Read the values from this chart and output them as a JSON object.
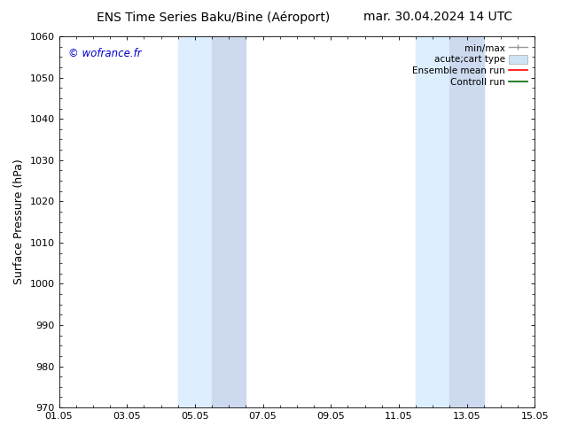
{
  "title_left": "ENS Time Series Baku/Bine (Aéroport)",
  "title_right": "mar. 30.04.2024 14 UTC",
  "ylabel": "Surface Pressure (hPa)",
  "ylim": [
    970,
    1060
  ],
  "yticks": [
    970,
    980,
    990,
    1000,
    1010,
    1020,
    1030,
    1040,
    1050,
    1060
  ],
  "xlim_start": 0,
  "xlim_end": 14,
  "xtick_labels": [
    "01.05",
    "03.05",
    "05.05",
    "07.05",
    "09.05",
    "11.05",
    "13.05",
    "15.05"
  ],
  "xtick_positions": [
    0,
    2,
    4,
    6,
    8,
    10,
    12,
    14
  ],
  "watermark": "© wofrance.fr",
  "watermark_color": "#0000cc",
  "bg_color": "#ffffff",
  "plot_bg_color": "#ffffff",
  "shaded_regions": [
    {
      "xmin": 3.5,
      "xmax": 4.5,
      "color": "#ddeeff"
    },
    {
      "xmin": 4.5,
      "xmax": 5.5,
      "color": "#ccd9ee"
    },
    {
      "xmin": 10.5,
      "xmax": 11.5,
      "color": "#ddeeff"
    },
    {
      "xmin": 11.5,
      "xmax": 12.5,
      "color": "#ccd9ee"
    }
  ],
  "title_fontsize": 10,
  "axis_fontsize": 9,
  "tick_fontsize": 8,
  "legend_fontsize": 7.5
}
